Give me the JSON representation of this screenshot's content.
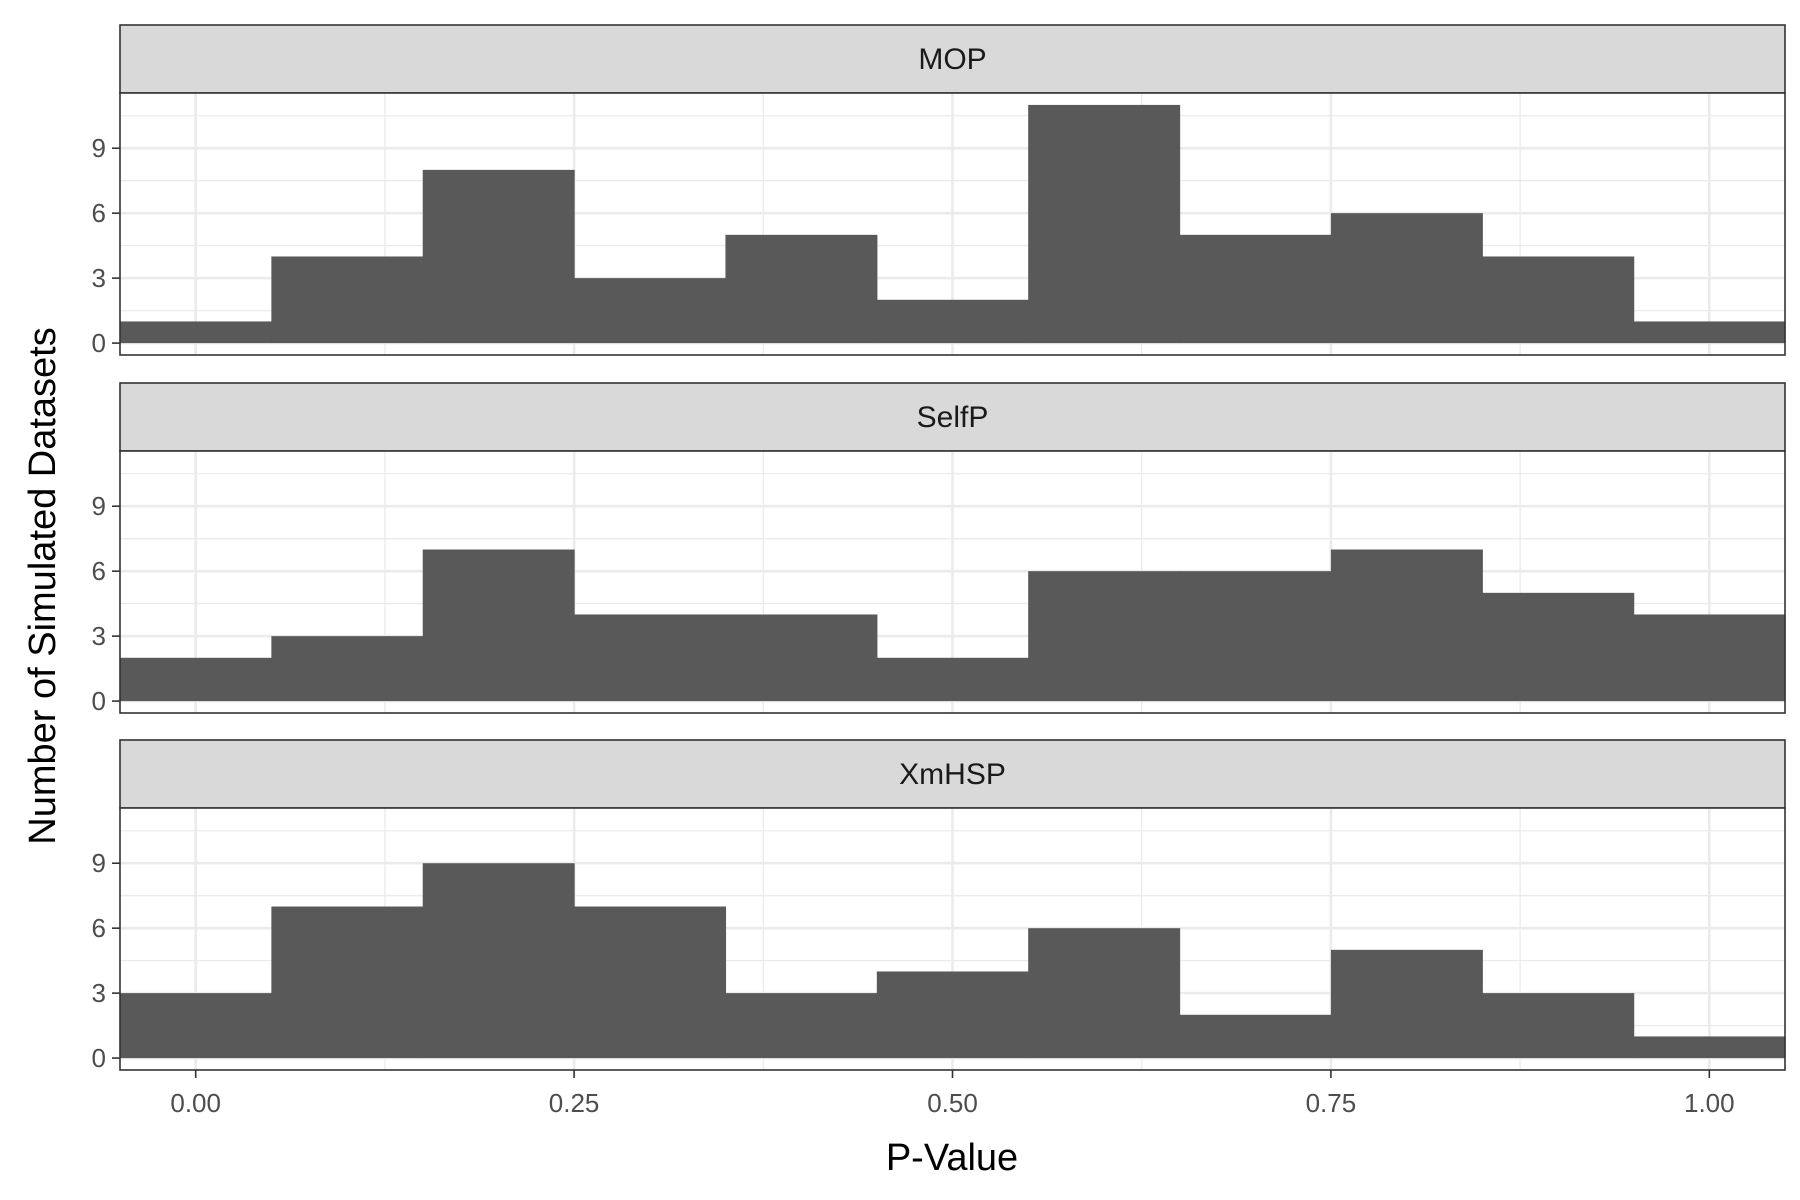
{
  "chart_data": {
    "type": "bar",
    "subtype": "histogram-facets",
    "xlabel": "P-Value",
    "ylabel": "Number of Simulated Datasets",
    "xlim": [
      -0.05,
      1.05
    ],
    "ylim": [
      0,
      11
    ],
    "x_ticks": [
      "0.00",
      "0.25",
      "0.50",
      "0.75",
      "1.00"
    ],
    "x_tick_values": [
      0,
      0.25,
      0.5,
      0.75,
      1.0
    ],
    "y_ticks": [
      "0",
      "3",
      "6",
      "9"
    ],
    "y_tick_values": [
      0,
      3,
      6,
      9
    ],
    "bin_edges": [
      -0.05,
      0.05,
      0.15,
      0.25,
      0.35,
      0.45,
      0.55,
      0.65,
      0.75,
      0.85,
      0.95,
      1.05
    ],
    "grid": true,
    "bar_color": "#595959",
    "facets": [
      {
        "name": "MOP",
        "values": [
          1,
          4,
          8,
          3,
          5,
          2,
          11,
          5,
          6,
          4,
          1
        ]
      },
      {
        "name": "SelfP",
        "values": [
          2,
          3,
          7,
          4,
          4,
          2,
          6,
          6,
          7,
          5,
          4
        ]
      },
      {
        "name": "XmHSP",
        "values": [
          3,
          7,
          9,
          7,
          3,
          4,
          6,
          2,
          5,
          3,
          1
        ]
      }
    ]
  }
}
